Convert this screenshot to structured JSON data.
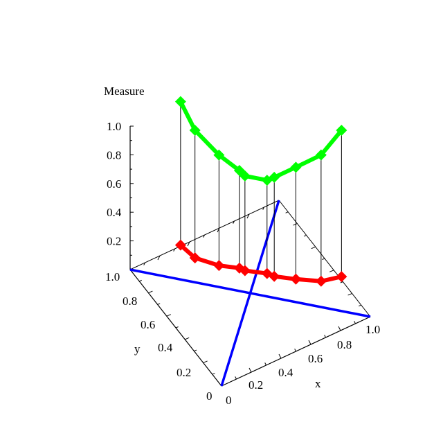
{
  "chart_data": {
    "type": "line",
    "projection": "3d",
    "xlabel": "x",
    "ylabel": "y",
    "zlabel": "Measure",
    "xlim": [
      0,
      1
    ],
    "ylim": [
      0,
      1
    ],
    "zlim": [
      0,
      1
    ],
    "x_ticks": [
      "0",
      "0.2",
      "0.4",
      "0.6",
      "0.8",
      "1.0"
    ],
    "y_ticks": [
      "0",
      "0.2",
      "0.4",
      "0.6",
      "0.8",
      "1.0"
    ],
    "z_ticks": [
      "0.2",
      "0.4",
      "0.6",
      "0.8",
      "1.0"
    ],
    "diagonals": {
      "color": "#0000ff",
      "segments": [
        [
          [
            0,
            0
          ],
          [
            1,
            1
          ]
        ],
        [
          [
            1,
            0
          ],
          [
            0,
            1
          ]
        ]
      ]
    },
    "points_x": [
      0.21,
      0.27,
      0.37,
      0.455,
      0.478,
      0.57,
      0.6,
      0.69,
      0.795,
      0.88
    ],
    "points_y_rule": "y = 1 - x",
    "series": [
      {
        "color": "#00ff00",
        "values": [
          1.24,
          1.06,
          0.92,
          0.84,
          0.81,
          0.81,
          0.84,
          0.94,
          1.06,
          1.26
        ]
      },
      {
        "color": "#ff0000",
        "values": [
          0.24,
          0.17,
          0.15,
          0.16,
          0.15,
          0.16,
          0.15,
          0.16,
          0.18,
          0.24
        ]
      }
    ],
    "marker": "diamond",
    "stems": true
  }
}
